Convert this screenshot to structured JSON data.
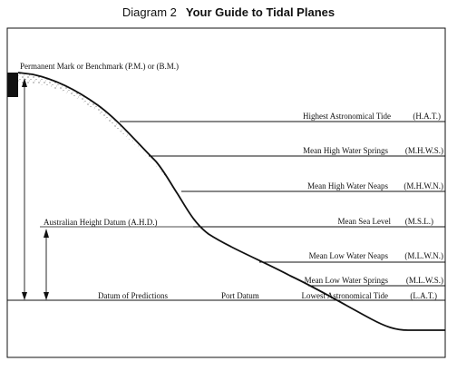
{
  "title_prefix": "Diagram 2",
  "title_main": "Your Guide to Tidal Planes",
  "mark_label": "Permanent Mark or Benchmark (P.M.) or (B.M.)",
  "ahd_label": "Australian Height Datum (A.H.D.)",
  "datum_predictions": "Datum of Predictions",
  "port_datum": "Port Datum",
  "tidal_planes": [
    {
      "name": "Highest Astronomical Tide",
      "abbr": "(H.A.T.)"
    },
    {
      "name": "Mean High Water Springs",
      "abbr": "(M.H.W.S.)"
    },
    {
      "name": "Mean High Water Neaps",
      "abbr": "(M.H.W.N.)"
    },
    {
      "name": "Mean Sea Level",
      "abbr": "(M.S.L.)"
    },
    {
      "name": "Mean Low Water Neaps",
      "abbr": "(M.L.W.N.)"
    },
    {
      "name": "Mean Low Water Springs",
      "abbr": "(M.L.W.S.)"
    },
    {
      "name": "Lowest Astronomical Tide",
      "abbr": "(L.A.T.)"
    }
  ]
}
